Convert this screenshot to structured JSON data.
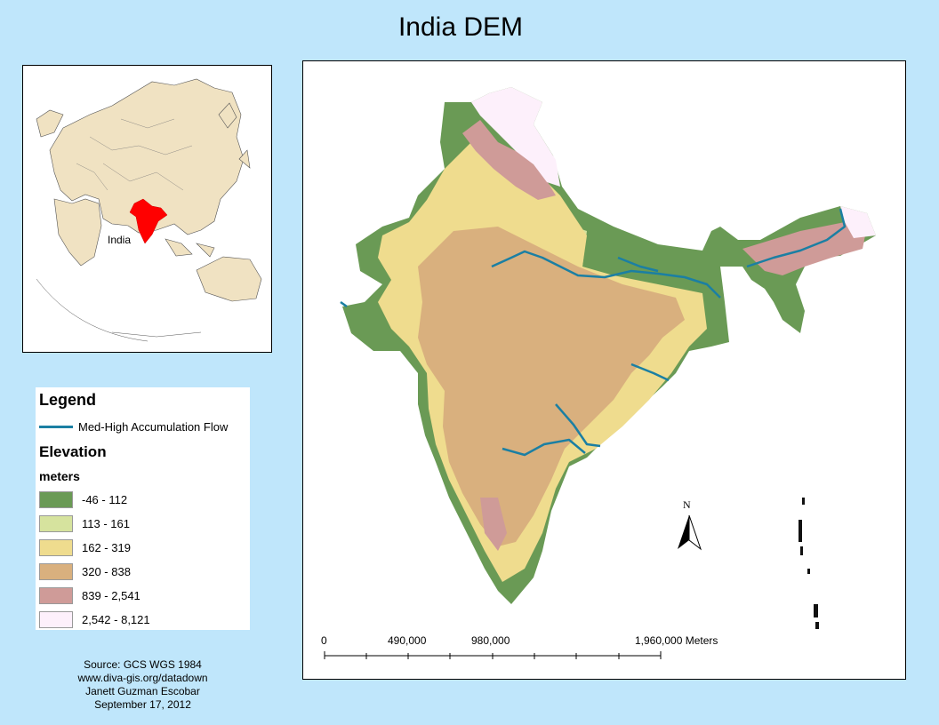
{
  "title": "India DEM",
  "inset": {
    "label": "India"
  },
  "legend": {
    "title": "Legend",
    "flow_label": "Med-High Accumulation Flow",
    "elevation_title": "Elevation",
    "units": "meters",
    "classes": [
      {
        "label": "-46 - 112",
        "color": "#6a9a55"
      },
      {
        "label": "113 - 161",
        "color": "#d6e39e"
      },
      {
        "label": "162 - 319",
        "color": "#efdc8e"
      },
      {
        "label": "320 - 838",
        "color": "#d9b07e"
      },
      {
        "label": "839 - 2,541",
        "color": "#cf9b98"
      },
      {
        "label": "2,542 - 8,121",
        "color": "#fdf0fb"
      }
    ],
    "flow_color": "#1b7fa3"
  },
  "scalebar": {
    "labels": [
      "0",
      "490,000",
      "980,000",
      "1,960,000 Meters"
    ]
  },
  "north_arrow": {
    "label": "N"
  },
  "credits": [
    "Source: GCS WGS 1984",
    "www.diva-gis.org/datadown",
    "Janett Guzman Escobar",
    "September 17, 2012"
  ]
}
